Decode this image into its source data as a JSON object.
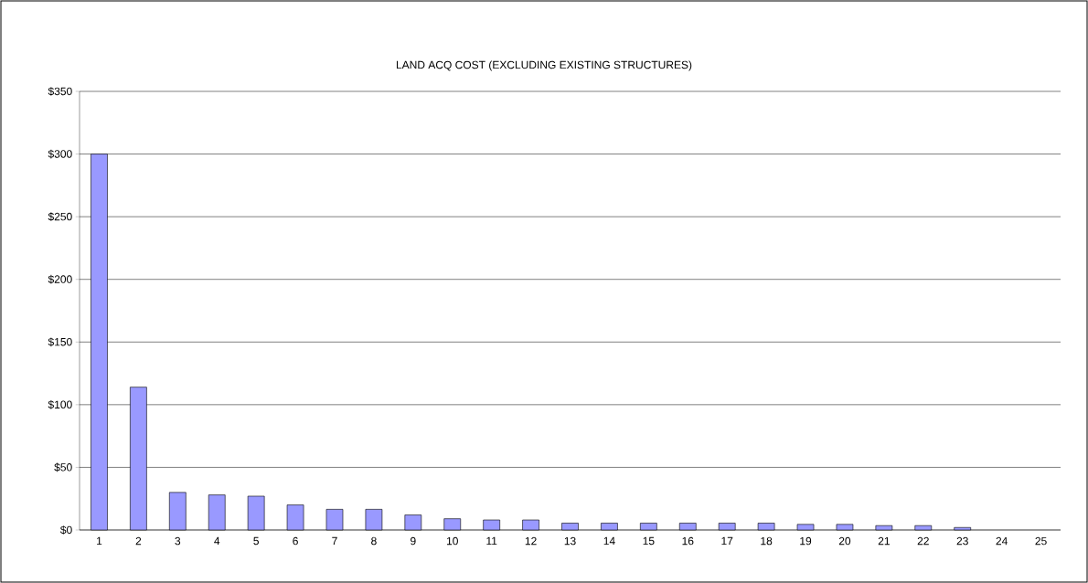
{
  "chart_data": {
    "type": "bar",
    "title": "LAND ACQ COST (EXCLUDING EXISTING STRUCTURES)",
    "categories": [
      "1",
      "2",
      "3",
      "4",
      "5",
      "6",
      "7",
      "8",
      "9",
      "10",
      "11",
      "12",
      "13",
      "14",
      "15",
      "16",
      "17",
      "18",
      "19",
      "20",
      "21",
      "22",
      "23",
      "24",
      "25"
    ],
    "values": [
      300,
      114,
      30,
      28,
      27,
      20,
      16.5,
      16.5,
      12,
      9,
      8,
      8,
      5.5,
      5.5,
      5.5,
      5.5,
      5.5,
      5.5,
      4.5,
      4.5,
      3.5,
      3.5,
      2,
      0,
      0
    ],
    "color": "#9999ff",
    "ylim": [
      0,
      350
    ],
    "yticks": [
      {
        "value": 0,
        "label": "$0"
      },
      {
        "value": 50,
        "label": "$50"
      },
      {
        "value": 100,
        "label": "$100"
      },
      {
        "value": 150,
        "label": "$150"
      },
      {
        "value": 200,
        "label": "$200"
      },
      {
        "value": 250,
        "label": "$250"
      },
      {
        "value": 300,
        "label": "$300"
      },
      {
        "value": 350,
        "label": "$350"
      }
    ],
    "grid": "y"
  }
}
